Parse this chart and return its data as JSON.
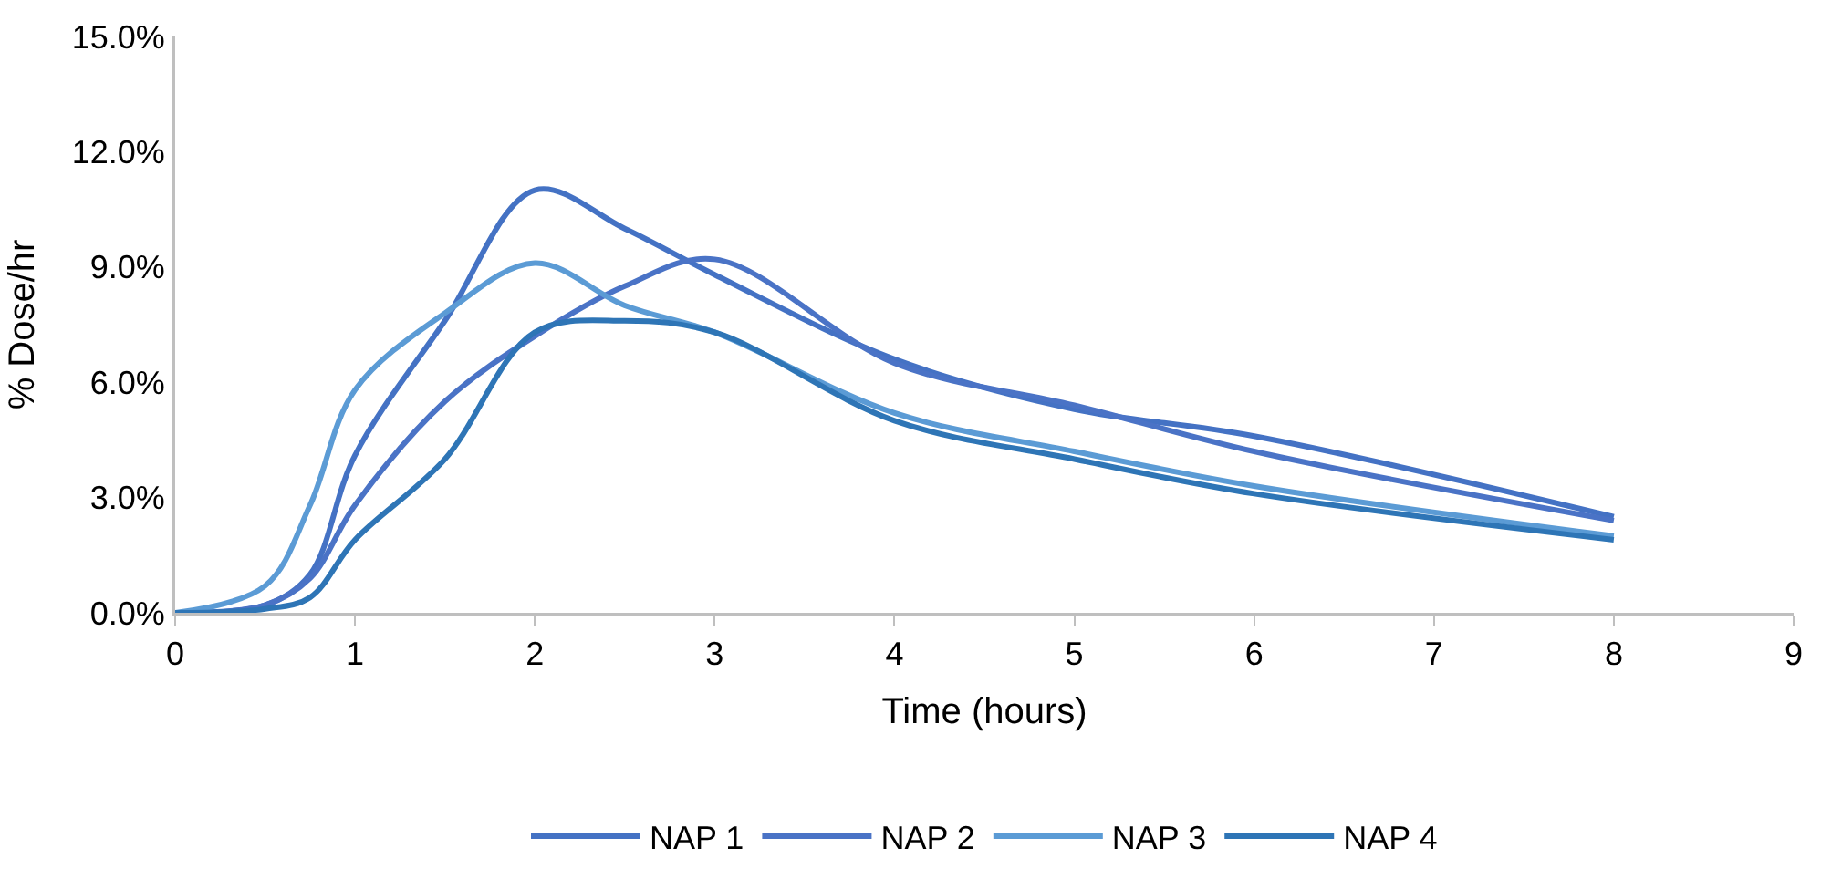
{
  "chart_data": {
    "type": "line",
    "xlabel": "Time (hours)",
    "ylabel": "% Dose/hr",
    "x": [
      0,
      0.5,
      0.75,
      1,
      1.5,
      2,
      2.5,
      3,
      4,
      5,
      6,
      8
    ],
    "series": [
      {
        "name": "NAP 1",
        "color": "#4472c4",
        "values": [
          0,
          0.2,
          1.0,
          4.1,
          7.6,
          11.0,
          10.0,
          8.8,
          6.6,
          5.3,
          4.6,
          2.5
        ]
      },
      {
        "name": "NAP 2",
        "color": "#4a73c6",
        "values": [
          0,
          0.2,
          0.9,
          2.8,
          5.5,
          7.2,
          8.5,
          9.2,
          6.5,
          5.4,
          4.2,
          2.4
        ]
      },
      {
        "name": "NAP 3",
        "color": "#5b9bd5",
        "values": [
          0,
          0.7,
          2.8,
          5.8,
          7.8,
          9.1,
          8.0,
          7.3,
          5.2,
          4.2,
          3.3,
          2.0
        ]
      },
      {
        "name": "NAP 4",
        "color": "#2e75b6",
        "values": [
          0,
          0.1,
          0.4,
          1.9,
          4.0,
          7.3,
          7.6,
          7.3,
          5.0,
          4.0,
          3.1,
          1.9
        ]
      }
    ],
    "xlim": [
      0,
      9
    ],
    "xticks": [
      0,
      1,
      2,
      3,
      4,
      5,
      6,
      7,
      8,
      9
    ],
    "ylim": [
      0,
      15
    ],
    "yticks": [
      {
        "value": 0,
        "label": "0.0%"
      },
      {
        "value": 3,
        "label": "3.0%"
      },
      {
        "value": 6,
        "label": "6.0%"
      },
      {
        "value": 9,
        "label": "9.0%"
      },
      {
        "value": 12,
        "label": "12.0%"
      },
      {
        "value": 15,
        "label": "15.0%"
      }
    ],
    "grid": false,
    "legend": "bottom",
    "marker": "none",
    "line_style": "solid"
  }
}
